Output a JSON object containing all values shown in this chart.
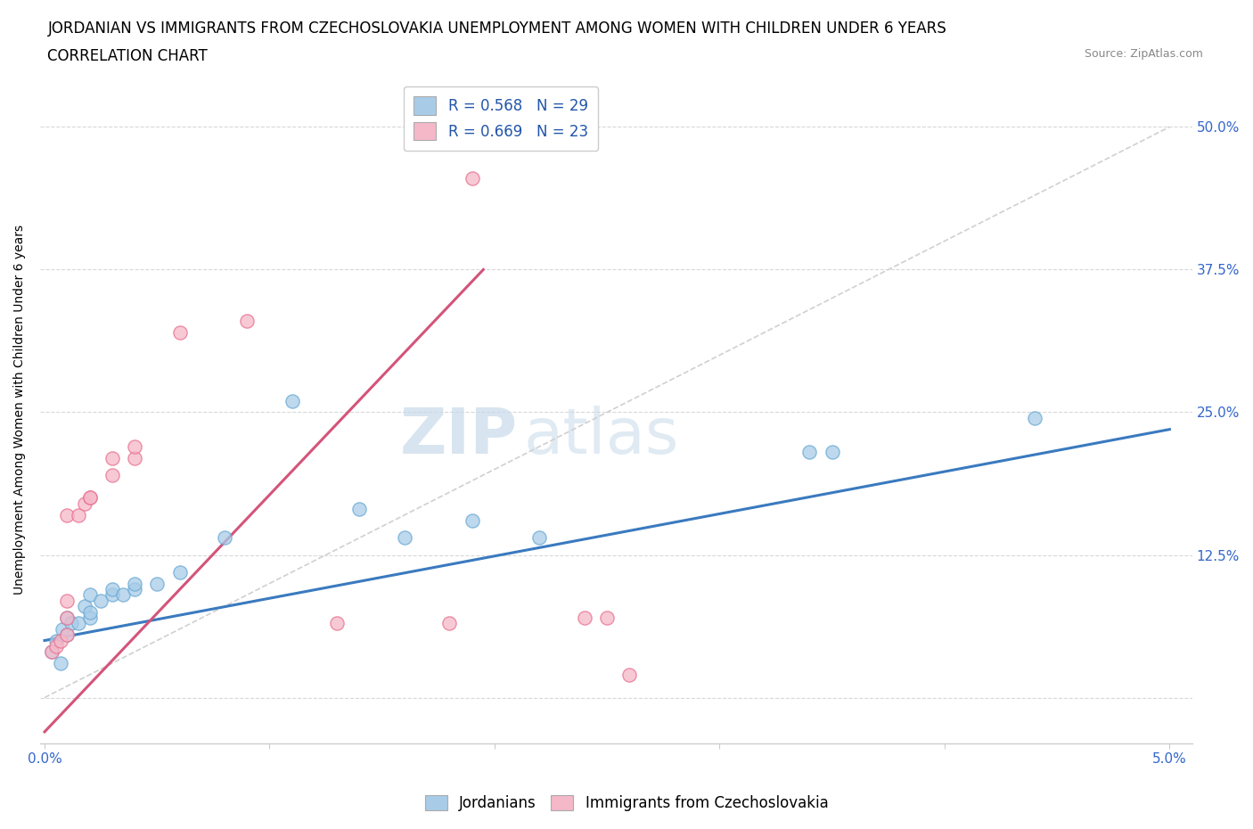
{
  "title_line1": "JORDANIAN VS IMMIGRANTS FROM CZECHOSLOVAKIA UNEMPLOYMENT AMONG WOMEN WITH CHILDREN UNDER 6 YEARS",
  "title_line2": "CORRELATION CHART",
  "source": "Source: ZipAtlas.com",
  "ylabel": "Unemployment Among Women with Children Under 6 years",
  "xlim": [
    -0.0002,
    0.051
  ],
  "ylim": [
    -0.04,
    0.545
  ],
  "xticks": [
    0.0,
    0.01,
    0.02,
    0.03,
    0.04,
    0.05
  ],
  "xticklabels": [
    "0.0%",
    "",
    "",
    "",
    "",
    "5.0%"
  ],
  "ytick_positions": [
    0.0,
    0.125,
    0.25,
    0.375,
    0.5
  ],
  "yticklabels": [
    "",
    "12.5%",
    "25.0%",
    "37.5%",
    "50.0%"
  ],
  "blue_color": "#a8cce8",
  "pink_color": "#f5b8c8",
  "blue_edge_color": "#6aaad4",
  "pink_edge_color": "#e87090",
  "blue_line_color": "#3a7abf",
  "pink_line_color": "#d4547a",
  "blue_scatter": [
    [
      0.0003,
      0.04
    ],
    [
      0.0005,
      0.05
    ],
    [
      0.0007,
      0.03
    ],
    [
      0.0008,
      0.06
    ],
    [
      0.001,
      0.055
    ],
    [
      0.001,
      0.07
    ],
    [
      0.0012,
      0.065
    ],
    [
      0.0015,
      0.065
    ],
    [
      0.0018,
      0.08
    ],
    [
      0.002,
      0.07
    ],
    [
      0.002,
      0.075
    ],
    [
      0.002,
      0.09
    ],
    [
      0.0025,
      0.085
    ],
    [
      0.003,
      0.09
    ],
    [
      0.003,
      0.095
    ],
    [
      0.0035,
      0.09
    ],
    [
      0.004,
      0.095
    ],
    [
      0.004,
      0.1
    ],
    [
      0.005,
      0.1
    ],
    [
      0.006,
      0.11
    ],
    [
      0.008,
      0.14
    ],
    [
      0.011,
      0.26
    ],
    [
      0.014,
      0.165
    ],
    [
      0.016,
      0.14
    ],
    [
      0.019,
      0.155
    ],
    [
      0.022,
      0.14
    ],
    [
      0.034,
      0.215
    ],
    [
      0.035,
      0.215
    ],
    [
      0.044,
      0.245
    ]
  ],
  "pink_scatter": [
    [
      0.0003,
      0.04
    ],
    [
      0.0005,
      0.045
    ],
    [
      0.0007,
      0.05
    ],
    [
      0.001,
      0.055
    ],
    [
      0.001,
      0.07
    ],
    [
      0.001,
      0.085
    ],
    [
      0.001,
      0.16
    ],
    [
      0.0015,
      0.16
    ],
    [
      0.0018,
      0.17
    ],
    [
      0.002,
      0.175
    ],
    [
      0.002,
      0.175
    ],
    [
      0.003,
      0.195
    ],
    [
      0.003,
      0.21
    ],
    [
      0.004,
      0.21
    ],
    [
      0.004,
      0.22
    ],
    [
      0.006,
      0.32
    ],
    [
      0.009,
      0.33
    ],
    [
      0.013,
      0.065
    ],
    [
      0.018,
      0.065
    ],
    [
      0.019,
      0.455
    ],
    [
      0.024,
      0.07
    ],
    [
      0.025,
      0.07
    ],
    [
      0.026,
      0.02
    ]
  ],
  "blue_line_x0": 0.0,
  "blue_line_y0": 0.05,
  "blue_line_x1": 0.05,
  "blue_line_y1": 0.235,
  "pink_line_x0": 0.0,
  "pink_line_y0": -0.03,
  "pink_line_x1": 0.0195,
  "pink_line_y1": 0.375,
  "blue_R": 0.568,
  "blue_N": 29,
  "pink_R": 0.669,
  "pink_N": 23,
  "watermark_zip": "ZIP",
  "watermark_atlas": "atlas",
  "title_fontsize": 12,
  "axis_label_fontsize": 10,
  "tick_fontsize": 11,
  "legend_fontsize": 12
}
